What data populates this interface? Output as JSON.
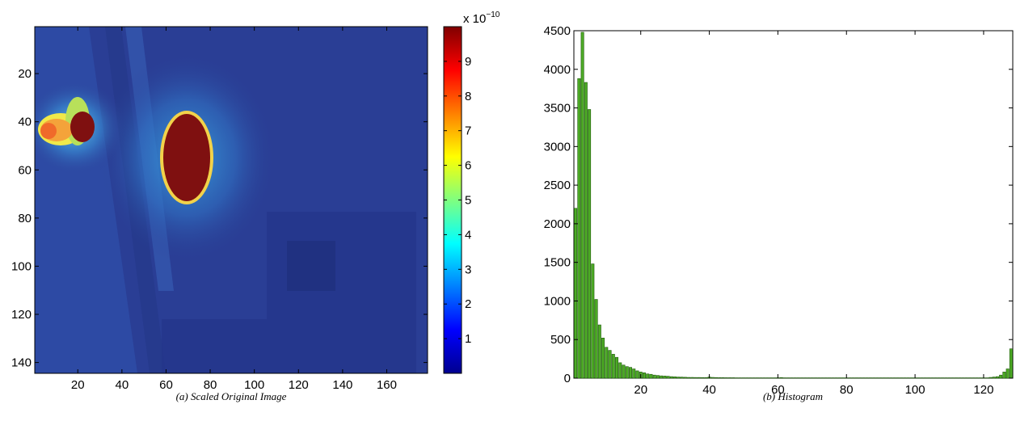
{
  "chart_data": [
    {
      "type": "heatmap",
      "caption_prefix": "(a)",
      "caption_text": "Scaled Original Image",
      "xlim": [
        0.5,
        178.5
      ],
      "ylim": [
        0.5,
        144.5
      ],
      "y_reversed": true,
      "xticks": [
        20,
        40,
        60,
        80,
        100,
        120,
        140,
        160
      ],
      "yticks": [
        20,
        40,
        60,
        80,
        100,
        120,
        140
      ],
      "colormap": "jet",
      "colorbar": {
        "ticks": [
          1,
          2,
          3,
          4,
          5,
          6,
          7,
          8,
          9
        ],
        "range": [
          0,
          10
        ],
        "multiplier_base": "x 10",
        "multiplier_exp": "−10"
      },
      "background_color": "#2a3e95",
      "saturated_regions": [
        {
          "name": "source-left",
          "center_x": 18,
          "center_y": 43,
          "value": 9.8
        },
        {
          "name": "source-center",
          "center_x": 69,
          "center_y": 55,
          "value": 9.8
        }
      ]
    },
    {
      "type": "bar",
      "caption_prefix": "(b)",
      "caption_text": "Histogram",
      "xlim": [
        0.5,
        128.5
      ],
      "ylim": [
        0,
        4500
      ],
      "xticks": [
        20,
        40,
        60,
        80,
        100,
        120
      ],
      "yticks": [
        0,
        500,
        1000,
        1500,
        2000,
        2500,
        3000,
        3500,
        4000,
        4500
      ],
      "bar_color": "#4daa26",
      "x": [
        1,
        2,
        3,
        4,
        5,
        6,
        7,
        8,
        9,
        10,
        11,
        12,
        13,
        14,
        15,
        16,
        17,
        18,
        19,
        20,
        21,
        22,
        23,
        24,
        25,
        26,
        27,
        28,
        29,
        30,
        31,
        32,
        33,
        34,
        35,
        36,
        37,
        38,
        39,
        40,
        41,
        42,
        43,
        44,
        45,
        46,
        47,
        48,
        49,
        50,
        51,
        52,
        53,
        54,
        55,
        56,
        57,
        58,
        59,
        60,
        61,
        62,
        63,
        64,
        65,
        66,
        67,
        68,
        69,
        70,
        71,
        72,
        73,
        74,
        75,
        76,
        77,
        78,
        79,
        80,
        81,
        82,
        83,
        84,
        85,
        86,
        87,
        88,
        89,
        90,
        91,
        92,
        93,
        94,
        95,
        96,
        97,
        98,
        99,
        100,
        101,
        102,
        103,
        104,
        105,
        106,
        107,
        108,
        109,
        110,
        111,
        112,
        113,
        114,
        115,
        116,
        117,
        118,
        119,
        120,
        121,
        122,
        123,
        124,
        125,
        126,
        127,
        128
      ],
      "values": [
        2200,
        3880,
        4480,
        3830,
        3480,
        1480,
        1020,
        690,
        520,
        400,
        360,
        310,
        270,
        200,
        170,
        150,
        140,
        120,
        95,
        80,
        70,
        55,
        50,
        40,
        35,
        30,
        28,
        25,
        20,
        18,
        15,
        14,
        12,
        10,
        10,
        9,
        9,
        8,
        8,
        15,
        10,
        8,
        7,
        7,
        6,
        6,
        6,
        5,
        5,
        5,
        5,
        5,
        5,
        5,
        5,
        5,
        5,
        5,
        5,
        6,
        8,
        5,
        5,
        5,
        5,
        5,
        5,
        5,
        5,
        5,
        5,
        5,
        5,
        5,
        5,
        5,
        5,
        5,
        5,
        5,
        5,
        5,
        5,
        5,
        5,
        5,
        5,
        5,
        5,
        5,
        5,
        5,
        5,
        5,
        5,
        5,
        5,
        5,
        5,
        5,
        5,
        5,
        5,
        5,
        5,
        5,
        5,
        5,
        5,
        5,
        5,
        5,
        5,
        5,
        5,
        5,
        5,
        5,
        5,
        5,
        5,
        10,
        15,
        20,
        40,
        80,
        120,
        380
      ]
    }
  ]
}
